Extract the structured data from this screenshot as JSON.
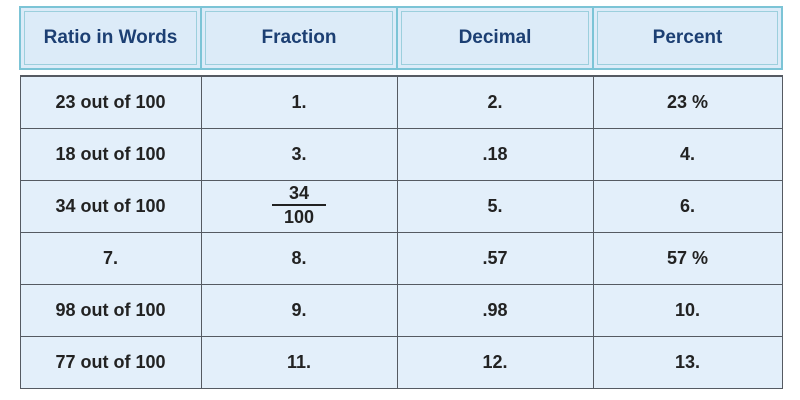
{
  "headers": [
    "Ratio in Words",
    "Fraction",
    "Decimal",
    "Percent"
  ],
  "rows": [
    {
      "words": "23 out of 100",
      "fraction": "1.",
      "decimal": "2.",
      "percent": "23 %"
    },
    {
      "words": "18 out of 100",
      "fraction": "3.",
      "decimal": ".18",
      "percent": "4."
    },
    {
      "words": "34 out of 100",
      "fraction_num": "34",
      "fraction_den": "100",
      "decimal": "5.",
      "percent": "6."
    },
    {
      "words": "7.",
      "fraction": "8.",
      "decimal": ".57",
      "percent": "57 %"
    },
    {
      "words": "98 out of 100",
      "fraction": "9.",
      "decimal": ".98",
      "percent": "10."
    },
    {
      "words": "77 out of 100",
      "fraction": "11.",
      "decimal": "12.",
      "percent": "13."
    }
  ],
  "colors": {
    "header_text": "#1c3f73",
    "answer_blank": "#d8282e",
    "cell_background": "#e3effa"
  }
}
